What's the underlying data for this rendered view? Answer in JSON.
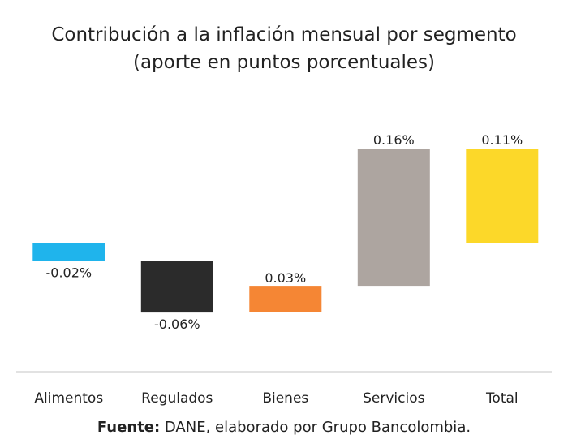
{
  "chart_data": {
    "type": "bar",
    "subtype": "waterfall",
    "title": "Contribución a la inflación mensual por segmento",
    "subtitle": "(aporte en puntos porcentuales)",
    "categories": [
      "Alimentos",
      "Regulados",
      "Bienes",
      "Servicios",
      "Total"
    ],
    "values": [
      -0.02,
      -0.06,
      0.03,
      0.16,
      0.11
    ],
    "value_labels": [
      "-0.02%",
      "-0.06%",
      "0.03%",
      "0.16%",
      "0.11%"
    ],
    "colors": [
      "#1fb4ec",
      "#2b2b2b",
      "#f58634",
      "#ada5a0",
      "#fcd829"
    ],
    "is_total": [
      false,
      false,
      false,
      false,
      true
    ],
    "xlabel": "",
    "ylabel": "",
    "grid": false,
    "legend": "none"
  },
  "source": {
    "label": "Fuente:",
    "text": "DANE, elaborado por Grupo Bancolombia."
  }
}
